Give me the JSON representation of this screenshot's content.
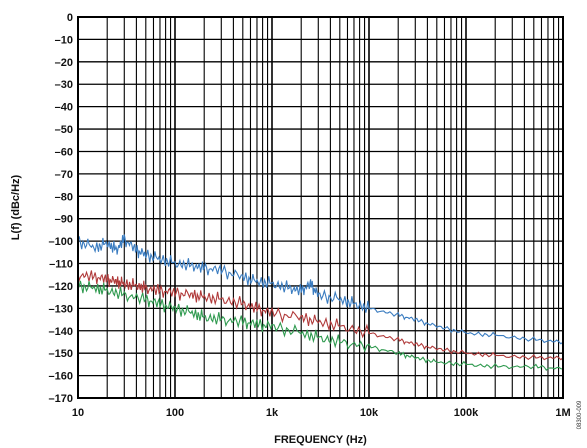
{
  "chart_data": {
    "type": "line",
    "xlabel": "FREQUENCY (Hz)",
    "ylabel": "L(f) (dBc/Hz)",
    "xscale": "log",
    "xlim": [
      10,
      1000000
    ],
    "ylim": [
      -170,
      0
    ],
    "grid": true,
    "legend": "none",
    "x_ticks": [
      {
        "value": 10,
        "label": "10"
      },
      {
        "value": 100,
        "label": "100"
      },
      {
        "value": 1000,
        "label": "1k"
      },
      {
        "value": 10000,
        "label": "10k"
      },
      {
        "value": 100000,
        "label": "100k"
      },
      {
        "value": 1000000,
        "label": "1M"
      }
    ],
    "y_ticks": [
      {
        "value": 0,
        "label": "0"
      },
      {
        "value": -10,
        "label": "–10"
      },
      {
        "value": -20,
        "label": "–20"
      },
      {
        "value": -30,
        "label": "–30"
      },
      {
        "value": -40,
        "label": "–40"
      },
      {
        "value": -50,
        "label": "–50"
      },
      {
        "value": -60,
        "label": "–60"
      },
      {
        "value": -70,
        "label": "–70"
      },
      {
        "value": -80,
        "label": "–80"
      },
      {
        "value": -90,
        "label": "–90"
      },
      {
        "value": -100,
        "label": "–100"
      },
      {
        "value": -110,
        "label": "–110"
      },
      {
        "value": -120,
        "label": "–120"
      },
      {
        "value": -130,
        "label": "–130"
      },
      {
        "value": -140,
        "label": "–140"
      },
      {
        "value": -150,
        "label": "–150"
      },
      {
        "value": -160,
        "label": "–160"
      },
      {
        "value": -170,
        "label": "–170"
      }
    ],
    "series": [
      {
        "color": "#3a7cc0",
        "x": [
          10,
          15,
          20,
          25,
          30,
          40,
          50,
          70,
          100,
          150,
          200,
          300,
          500,
          700,
          1000,
          1500,
          2000,
          2500,
          3000,
          5000,
          7000,
          10000,
          20000,
          30000,
          50000,
          100000,
          200000,
          500000,
          1000000
        ],
        "y": [
          -100,
          -103,
          -101,
          -104,
          -99,
          -104,
          -106,
          -108,
          -110,
          -111,
          -112,
          -113,
          -116,
          -118,
          -119,
          -121,
          -122,
          -119,
          -124,
          -126,
          -128,
          -130,
          -133,
          -135,
          -138,
          -141,
          -142,
          -144,
          -145
        ]
      },
      {
        "color": "#b03a3a",
        "x": [
          10,
          15,
          20,
          25,
          30,
          40,
          50,
          70,
          100,
          150,
          200,
          300,
          500,
          700,
          1000,
          2000,
          3000,
          5000,
          10000,
          20000,
          30000,
          50000,
          100000,
          200000,
          500000,
          1000000
        ],
        "y": [
          -115,
          -116,
          -117,
          -118,
          -119,
          -120,
          -121,
          -122,
          -123,
          -124,
          -125,
          -126,
          -128,
          -130,
          -132,
          -134,
          -136,
          -138,
          -141,
          -144,
          -146,
          -148,
          -150,
          -151,
          -152,
          -152
        ]
      },
      {
        "color": "#2f9a4f",
        "x": [
          10,
          15,
          20,
          30,
          50,
          70,
          100,
          150,
          200,
          300,
          500,
          700,
          1000,
          2000,
          3000,
          5000,
          10000,
          20000,
          30000,
          50000,
          100000,
          200000,
          500000,
          1000000
        ],
        "y": [
          -120,
          -121,
          -122,
          -124,
          -126,
          -128,
          -130,
          -132,
          -134,
          -135,
          -136,
          -137,
          -138,
          -141,
          -143,
          -145,
          -147,
          -150,
          -152,
          -154,
          -155,
          -156,
          -156,
          -157
        ]
      }
    ]
  },
  "watermark": "08300-009"
}
